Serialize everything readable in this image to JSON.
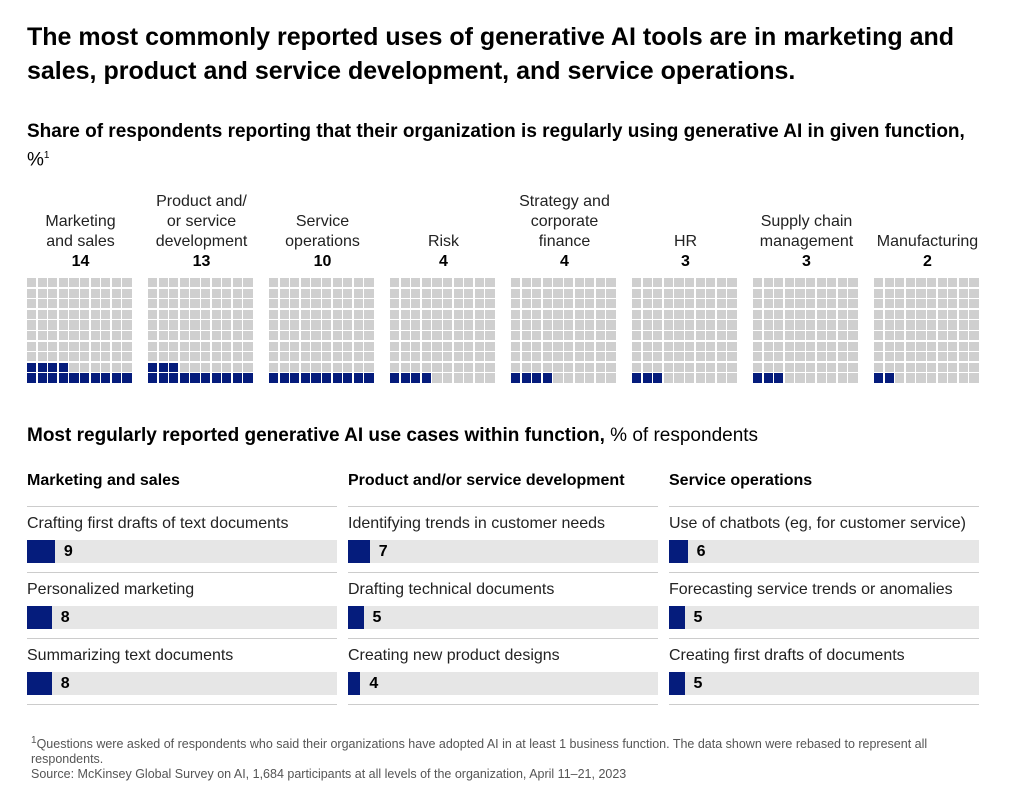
{
  "title": "The most commonly reported uses of generative AI tools are in marketing and sales, product and service development, and service operations.",
  "subtitle": "Share of respondents reporting that their organization is regularly using generative AI in given function,",
  "subtitle_unit": "%",
  "subtitle_note": "1",
  "colors": {
    "accent": "#051c7c",
    "empty": "#cfcfcf",
    "bar_track": "#e6e6e6"
  },
  "chart_data": [
    {
      "type": "waffle",
      "title": "Share of respondents reporting that their organization is regularly using generative AI in given function, %",
      "categories": [
        "Marketing and sales",
        "Product and/ or service development",
        "Service operations",
        "Risk",
        "Strategy and corporate finance",
        "HR",
        "Supply chain management",
        "Manufacturing"
      ],
      "labels": [
        [
          "Marketing",
          "and sales"
        ],
        [
          "Product and/",
          "or service",
          "development"
        ],
        [
          "Service",
          "operations"
        ],
        [
          "Risk"
        ],
        [
          "Strategy and",
          "corporate",
          "finance"
        ],
        [
          "HR"
        ],
        [
          "Supply chain",
          "management"
        ],
        [
          "Manufacturing"
        ]
      ],
      "values": [
        14,
        13,
        10,
        4,
        4,
        3,
        3,
        2
      ],
      "display_values": [
        "14",
        "13",
        "10",
        "4",
        "4",
        "3",
        "3",
        "2"
      ],
      "grid": "10x10"
    },
    {
      "type": "bar",
      "title": "Most regularly reported generative AI use cases within function,",
      "title_unit": "% of respondents",
      "max": 100,
      "groups": [
        {
          "name": "Marketing and sales",
          "items": [
            {
              "label": "Crafting first drafts of text documents",
              "value": 9,
              "display": "9"
            },
            {
              "label": "Personalized marketing",
              "value": 8,
              "display": "8"
            },
            {
              "label": "Summarizing text documents",
              "value": 8,
              "display": "8"
            }
          ]
        },
        {
          "name": "Product and/or service development",
          "items": [
            {
              "label": "Identifying trends in customer needs",
              "value": 7,
              "display": "7"
            },
            {
              "label": "Drafting technical documents",
              "value": 5,
              "display": "5"
            },
            {
              "label": "Creating new product designs",
              "value": 4,
              "display": "4"
            }
          ]
        },
        {
          "name": "Service operations",
          "items": [
            {
              "label": "Use of chatbots (eg, for customer service)",
              "value": 6,
              "display": "6"
            },
            {
              "label": "Forecasting service trends or anomalies",
              "value": 5,
              "display": "5"
            },
            {
              "label": "Creating first drafts of documents",
              "value": 5,
              "display": "5"
            }
          ]
        }
      ]
    }
  ],
  "footnote": {
    "marker": "1",
    "text": "Questions were asked of respondents who said their organizations have adopted AI in at least 1 business function. The data shown were rebased to represent all respondents.",
    "source": "Source: McKinsey Global Survey on AI, 1,684 participants at all levels of the organization, April 11–21, 2023"
  }
}
